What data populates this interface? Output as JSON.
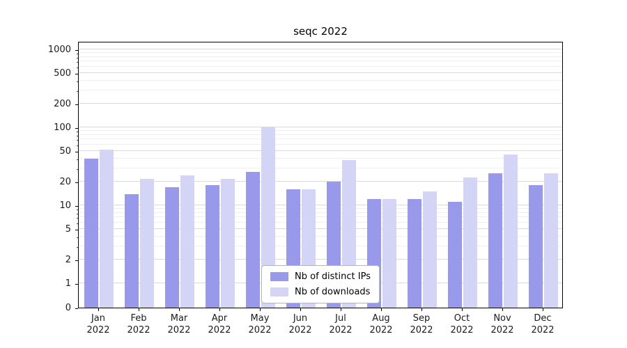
{
  "chart_data": {
    "type": "bar",
    "title": "seqc 2022",
    "yscale": "symlog",
    "grid": true,
    "legend_position": "lower center",
    "ylim": [
      0,
      1300
    ],
    "yticks": [
      0,
      1,
      2,
      5,
      10,
      20,
      50,
      100,
      200,
      500,
      1000
    ],
    "categories": [
      "Jan\n2022",
      "Feb\n2022",
      "Mar\n2022",
      "Apr\n2022",
      "May\n2022",
      "Jun\n2022",
      "Jul\n2022",
      "Aug\n2022",
      "Sep\n2022",
      "Oct\n2022",
      "Nov\n2022",
      "Dec\n2022"
    ],
    "series": [
      {
        "name": "Nb of distinct IPs",
        "color": "#9999ec",
        "values": [
          40,
          14,
          17,
          18,
          27,
          16,
          20,
          12,
          12,
          11,
          26,
          18
        ]
      },
      {
        "name": "Nb of downloads",
        "color": "#d4d4f7",
        "values": [
          52,
          22,
          24,
          22,
          100,
          16,
          38,
          12,
          15,
          23,
          45,
          26
        ]
      }
    ]
  }
}
